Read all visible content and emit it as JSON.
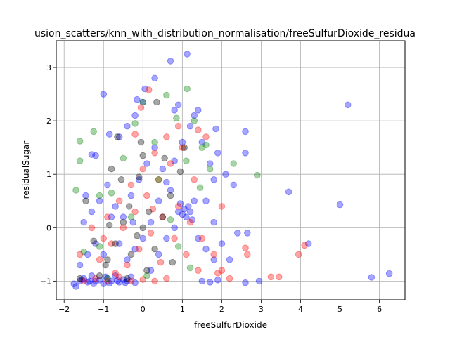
{
  "chart_data": {
    "type": "scatter",
    "title": "usion_scatters/knn_with_distribution_normalisation/freeSulfurDioxide_residua",
    "xlabel": "freeSulfurDioxide",
    "ylabel": "residualSugar",
    "xlim": [
      -2.2,
      6.65
    ],
    "ylim": [
      -1.35,
      3.5
    ],
    "xticks": [
      -2,
      -1,
      0,
      1,
      2,
      3,
      4,
      5,
      6
    ],
    "yticks": [
      -1,
      0,
      1,
      2,
      3
    ],
    "grid": true,
    "marker_alpha": 0.35,
    "series": [
      {
        "color": "#0000ff",
        "points": [
          [
            -1.75,
            -1.05
          ],
          [
            -1.6,
            -1.0
          ],
          [
            -1.5,
            -0.95
          ],
          [
            -1.4,
            -1.02
          ],
          [
            -1.3,
            -0.9
          ],
          [
            -1.2,
            -1.0
          ],
          [
            -1.1,
            -0.98
          ],
          [
            -1.0,
            -1.05
          ],
          [
            -0.9,
            -0.95
          ],
          [
            -0.8,
            -1.0
          ],
          [
            -0.7,
            -0.9
          ],
          [
            -0.6,
            -1.02
          ],
          [
            -0.5,
            -0.97
          ],
          [
            -0.4,
            -1.0
          ],
          [
            -0.3,
            -0.92
          ],
          [
            -0.2,
            -1.03
          ],
          [
            -1.7,
            -1.1
          ],
          [
            -1.55,
            -0.97
          ],
          [
            -1.35,
            -1.0
          ],
          [
            -1.25,
            -1.05
          ],
          [
            -0.95,
            -0.92
          ],
          [
            -0.85,
            -1.04
          ],
          [
            -0.65,
            -0.99
          ],
          [
            -0.45,
            -1.03
          ],
          [
            -1.6,
            -0.7
          ],
          [
            -1.4,
            -0.5
          ],
          [
            -1.2,
            -0.3
          ],
          [
            -1.5,
            0.1
          ],
          [
            -1.3,
            0.3
          ],
          [
            -1.1,
            0.5
          ],
          [
            -0.9,
            0.8
          ],
          [
            -0.7,
            0.4
          ],
          [
            -0.5,
            0.2
          ],
          [
            -0.3,
            0.6
          ],
          [
            -0.1,
            0.9
          ],
          [
            0.1,
            1.2
          ],
          [
            0.3,
            1.5
          ],
          [
            0.5,
            1.1
          ],
          [
            0.7,
            0.7
          ],
          [
            0.9,
            0.3
          ],
          [
            1.0,
            0.25
          ],
          [
            1.05,
            0.35
          ],
          [
            1.1,
            0.2
          ],
          [
            1.15,
            0.4
          ],
          [
            1.2,
            0.3
          ],
          [
            1.25,
            0.15
          ],
          [
            0.95,
            0.45
          ],
          [
            1.3,
            0.5
          ],
          [
            -0.6,
            1.7
          ],
          [
            -0.85,
            1.75
          ],
          [
            -0.4,
            1.9
          ],
          [
            -0.2,
            2.1
          ],
          [
            0.0,
            2.35
          ],
          [
            -0.15,
            2.4
          ],
          [
            0.05,
            2.6
          ],
          [
            0.3,
            2.8
          ],
          [
            0.7,
            3.12
          ],
          [
            1.12,
            3.25
          ],
          [
            0.8,
            2.2
          ],
          [
            0.9,
            2.3
          ],
          [
            1.3,
            2.1
          ],
          [
            1.5,
            1.6
          ],
          [
            1.7,
            1.2
          ],
          [
            1.85,
            1.85
          ],
          [
            1.9,
            1.4
          ],
          [
            2.1,
            1.0
          ],
          [
            2.3,
            0.8
          ],
          [
            2.6,
            1.8
          ],
          [
            2.6,
            1.4
          ],
          [
            1.8,
            0.9
          ],
          [
            1.6,
            0.5
          ],
          [
            1.8,
            0.1
          ],
          [
            1.4,
            -0.2
          ],
          [
            1.6,
            -0.4
          ],
          [
            1.8,
            -0.6
          ],
          [
            2.0,
            -0.3
          ],
          [
            2.2,
            -0.6
          ],
          [
            2.4,
            -0.1
          ],
          [
            2.65,
            -0.1
          ],
          [
            2.6,
            -1.03
          ],
          [
            2.95,
            -1.0
          ],
          [
            3.7,
            0.67
          ],
          [
            4.2,
            -0.3
          ],
          [
            5.0,
            0.43
          ],
          [
            5.2,
            2.3
          ],
          [
            5.8,
            -0.93
          ],
          [
            6.25,
            -0.86
          ],
          [
            1.5,
            -1.0
          ],
          [
            1.7,
            -1.02
          ],
          [
            1.9,
            -0.98
          ],
          [
            0.2,
            -0.8
          ],
          [
            0.4,
            -0.5
          ],
          [
            0.6,
            -0.2
          ],
          [
            0.8,
            0.0
          ],
          [
            -1.0,
            2.5
          ],
          [
            -1.3,
            1.37
          ],
          [
            -1.2,
            1.35
          ],
          [
            -0.8,
            0.2
          ],
          [
            -0.6,
            -0.3
          ],
          [
            -0.4,
            -0.6
          ],
          [
            -0.2,
            -0.4
          ],
          [
            0.0,
            -0.2
          ],
          [
            0.2,
            0.1
          ],
          [
            0.4,
            0.5
          ],
          [
            0.6,
            0.85
          ],
          [
            0.8,
            1.25
          ],
          [
            1.0,
            1.6
          ],
          [
            1.2,
            1.9
          ],
          [
            1.4,
            2.2
          ],
          [
            -1.45,
            0.6
          ],
          [
            -1.0,
            -0.5
          ],
          [
            -0.25,
            0.1
          ]
        ]
      },
      {
        "color": "#ff0000",
        "points": [
          [
            -1.5,
            -1.0
          ],
          [
            -1.2,
            -0.95
          ],
          [
            -0.9,
            -1.0
          ],
          [
            -0.6,
            -0.92
          ],
          [
            -0.3,
            -1.0
          ],
          [
            0.0,
            -0.97
          ],
          [
            0.3,
            -1.0
          ],
          [
            0.6,
            -0.95
          ],
          [
            -1.1,
            -0.6
          ],
          [
            -0.8,
            -0.3
          ],
          [
            -0.5,
            0.0
          ],
          [
            -0.2,
            0.3
          ],
          [
            0.1,
            0.6
          ],
          [
            0.4,
            0.9
          ],
          [
            0.7,
            1.2
          ],
          [
            1.0,
            1.5
          ],
          [
            -0.9,
            0.2
          ],
          [
            -0.6,
            0.5
          ],
          [
            -0.3,
            0.8
          ],
          [
            0.0,
            1.1
          ],
          [
            0.3,
            1.4
          ],
          [
            0.6,
            1.7
          ],
          [
            0.9,
            0.4
          ],
          [
            1.2,
            0.1
          ],
          [
            1.5,
            -0.2
          ],
          [
            1.8,
            -0.5
          ],
          [
            2.0,
            -0.8
          ],
          [
            2.0,
            0.4
          ],
          [
            1.6,
            1.7
          ],
          [
            1.4,
            1.83
          ],
          [
            0.15,
            2.58
          ],
          [
            -0.05,
            2.25
          ],
          [
            -0.2,
            1.75
          ],
          [
            0.5,
            0.2
          ],
          [
            0.8,
            -0.2
          ],
          [
            1.1,
            -0.5
          ],
          [
            1.4,
            -0.8
          ],
          [
            2.6,
            -0.38
          ],
          [
            2.65,
            -0.5
          ],
          [
            3.25,
            -0.92
          ],
          [
            3.45,
            -0.92
          ],
          [
            3.95,
            -0.5
          ],
          [
            4.1,
            -0.33
          ],
          [
            2.2,
            -0.95
          ],
          [
            1.9,
            -0.85
          ],
          [
            0.2,
            -0.1
          ],
          [
            -0.1,
            -0.4
          ],
          [
            -0.4,
            -0.7
          ],
          [
            -0.7,
            -0.85
          ],
          [
            -1.0,
            -0.2
          ],
          [
            -1.3,
            0.0
          ],
          [
            -1.6,
            -0.5
          ],
          [
            0.9,
            1.9
          ],
          [
            1.3,
            0.9
          ],
          [
            0.45,
            -0.65
          ],
          [
            0.25,
            0.35
          ]
        ]
      },
      {
        "color": "#008000",
        "points": [
          [
            -1.7,
            0.7
          ],
          [
            -1.6,
            1.62
          ],
          [
            -1.6,
            1.25
          ],
          [
            -1.25,
            1.8
          ],
          [
            -1.1,
            -0.35
          ],
          [
            -0.8,
            0.65
          ],
          [
            -0.5,
            1.3
          ],
          [
            -0.2,
            1.95
          ],
          [
            0.0,
            2.35
          ],
          [
            0.3,
            1.6
          ],
          [
            0.6,
            2.48
          ],
          [
            0.85,
            2.05
          ],
          [
            1.12,
            2.6
          ],
          [
            1.1,
            1.25
          ],
          [
            1.3,
            2.0
          ],
          [
            1.45,
            0.75
          ],
          [
            1.5,
            1.5
          ],
          [
            1.7,
            1.1
          ],
          [
            2.3,
            1.2
          ],
          [
            2.9,
            0.98
          ],
          [
            1.2,
            -0.75
          ],
          [
            -1.5,
            -0.45
          ],
          [
            0.4,
            0.9
          ],
          [
            -0.3,
            0.2
          ],
          [
            -0.9,
            -0.95
          ],
          [
            0.1,
            -0.9
          ],
          [
            0.9,
            -0.35
          ],
          [
            1.6,
            1.55
          ],
          [
            -1.1,
            0.6
          ],
          [
            0.7,
            0.15
          ]
        ]
      },
      {
        "color": "#000000",
        "points": [
          [
            -1.6,
            -0.95
          ],
          [
            -1.1,
            -0.9
          ],
          [
            -0.9,
            -0.6
          ],
          [
            -0.7,
            -0.3
          ],
          [
            -0.5,
            0.1
          ],
          [
            -0.35,
            0.4
          ],
          [
            -0.1,
            0.95
          ],
          [
            0.0,
            1.35
          ],
          [
            -0.05,
            1.6
          ],
          [
            -0.65,
            1.7
          ],
          [
            -0.55,
            0.9
          ],
          [
            -0.3,
            -0.5
          ],
          [
            0.1,
            -0.8
          ],
          [
            0.3,
            -0.4
          ],
          [
            0.5,
            0.2
          ],
          [
            0.7,
            0.6
          ],
          [
            0.95,
            1.05
          ],
          [
            1.05,
            1.5
          ],
          [
            0.75,
            -0.65
          ],
          [
            0.35,
            2.35
          ],
          [
            -0.85,
            0.05
          ],
          [
            -1.25,
            -0.25
          ],
          [
            -0.15,
            -0.15
          ],
          [
            0.15,
            0.3
          ],
          [
            -0.95,
            -0.7
          ],
          [
            -0.4,
            -0.95
          ],
          [
            0.55,
            1.3
          ],
          [
            -1.45,
            0.5
          ],
          [
            -0.8,
            1.1
          ],
          [
            0.0,
            0.0
          ]
        ]
      }
    ]
  }
}
